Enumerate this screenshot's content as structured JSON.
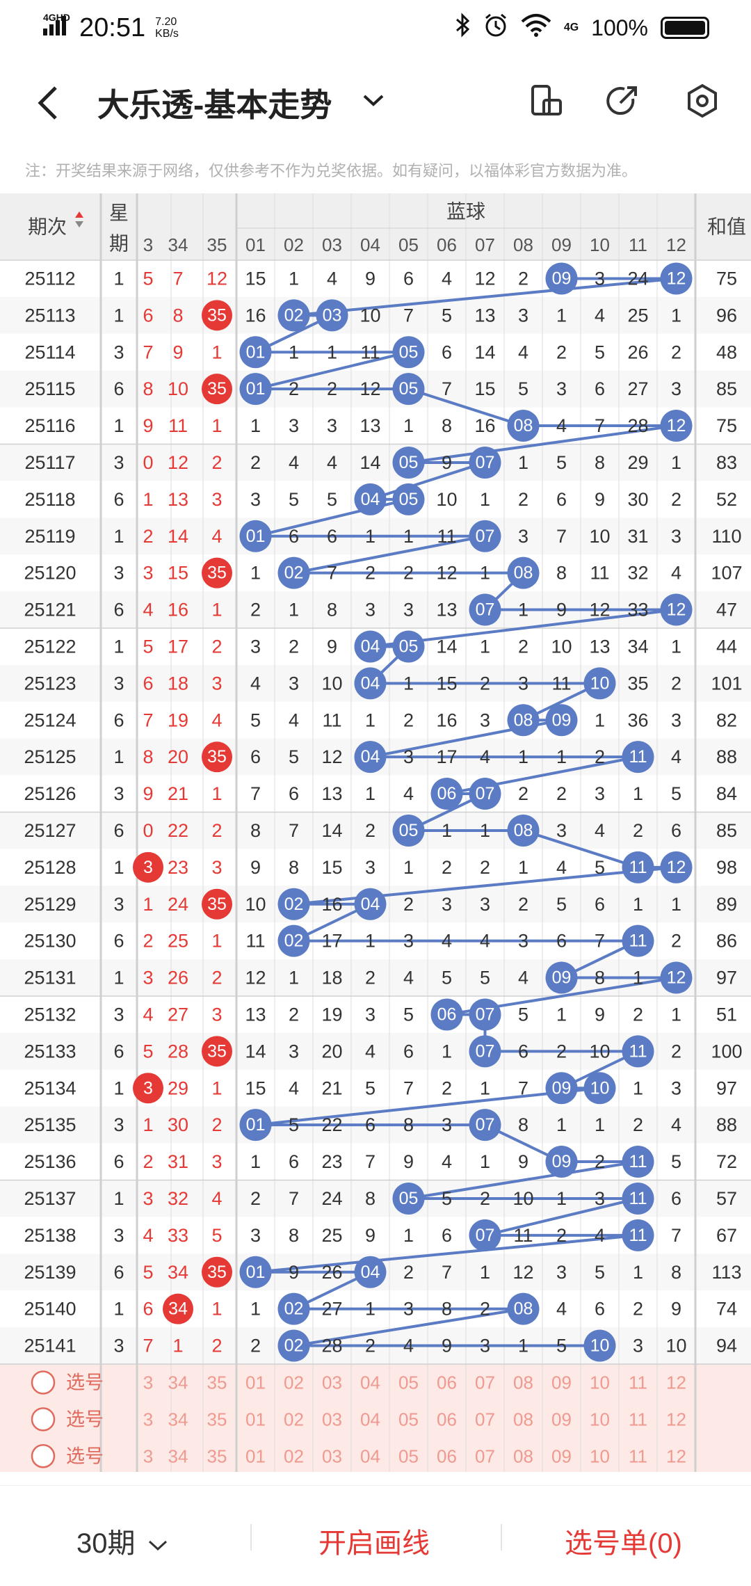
{
  "status_bar": {
    "network": "4GHD",
    "time": "20:51",
    "speed_value": "7.20",
    "speed_unit": "KB/s",
    "signal_4g": "4G",
    "battery": "100%"
  },
  "header": {
    "title": "大乐透-基本走势"
  },
  "disclaimer": "注：开奖结果来源于网络，仅供参考不作为兑奖依据。如有疑问，以福体彩官方数据为准。",
  "table": {
    "header_period": "期次",
    "header_weekday": "星期",
    "header_blue": "蓝球",
    "header_sum": "和值",
    "red_cols": [
      "3",
      "34",
      "35"
    ],
    "blue_cols": [
      "01",
      "02",
      "03",
      "04",
      "05",
      "06",
      "07",
      "08",
      "09",
      "10",
      "11",
      "12"
    ],
    "rows": [
      {
        "p": "25112",
        "w": "1",
        "r": [
          "5",
          "7",
          "12"
        ],
        "b": [
          15,
          1,
          4,
          9,
          6,
          4,
          12,
          2,
          "09",
          3,
          24,
          "12"
        ],
        "s": "75"
      },
      {
        "p": "25113",
        "w": "1",
        "r": [
          "6",
          "8",
          "35"
        ],
        "b": [
          16,
          "02",
          "03",
          10,
          7,
          5,
          13,
          3,
          1,
          4,
          25,
          1
        ],
        "s": "96"
      },
      {
        "p": "25114",
        "w": "3",
        "r": [
          "7",
          "9",
          "1"
        ],
        "b": [
          "01",
          1,
          1,
          11,
          "05",
          6,
          14,
          4,
          2,
          5,
          26,
          2
        ],
        "s": "48"
      },
      {
        "p": "25115",
        "w": "6",
        "r": [
          "8",
          "10",
          "35"
        ],
        "b": [
          "01",
          2,
          2,
          12,
          "05",
          7,
          15,
          5,
          3,
          6,
          27,
          3
        ],
        "s": "85"
      },
      {
        "p": "25116",
        "w": "1",
        "r": [
          "9",
          "11",
          "1"
        ],
        "b": [
          1,
          3,
          3,
          13,
          1,
          8,
          16,
          "08",
          4,
          7,
          28,
          "12"
        ],
        "s": "75"
      },
      {
        "p": "25117",
        "w": "3",
        "r": [
          "0",
          "12",
          "2"
        ],
        "b": [
          2,
          4,
          4,
          14,
          "05",
          9,
          "07",
          1,
          5,
          8,
          29,
          1
        ],
        "s": "83"
      },
      {
        "p": "25118",
        "w": "6",
        "r": [
          "1",
          "13",
          "3"
        ],
        "b": [
          3,
          5,
          5,
          "04",
          "05",
          10,
          1,
          2,
          6,
          9,
          30,
          2
        ],
        "s": "52"
      },
      {
        "p": "25119",
        "w": "1",
        "r": [
          "2",
          "14",
          "4"
        ],
        "b": [
          "01",
          6,
          6,
          1,
          1,
          11,
          "07",
          3,
          7,
          10,
          31,
          3
        ],
        "s": "110"
      },
      {
        "p": "25120",
        "w": "3",
        "r": [
          "3",
          "15",
          "35"
        ],
        "b": [
          1,
          "02",
          7,
          2,
          2,
          12,
          1,
          "08",
          8,
          11,
          32,
          4
        ],
        "s": "107"
      },
      {
        "p": "25121",
        "w": "6",
        "r": [
          "4",
          "16",
          "1"
        ],
        "b": [
          2,
          1,
          8,
          3,
          3,
          13,
          "07",
          1,
          9,
          12,
          33,
          "12"
        ],
        "s": "47"
      },
      {
        "p": "25122",
        "w": "1",
        "r": [
          "5",
          "17",
          "2"
        ],
        "b": [
          3,
          2,
          9,
          "04",
          "05",
          14,
          1,
          2,
          10,
          13,
          34,
          1
        ],
        "s": "44"
      },
      {
        "p": "25123",
        "w": "3",
        "r": [
          "6",
          "18",
          "3"
        ],
        "b": [
          4,
          3,
          10,
          "04",
          1,
          15,
          2,
          3,
          11,
          "10",
          35,
          2
        ],
        "s": "101"
      },
      {
        "p": "25124",
        "w": "6",
        "r": [
          "7",
          "19",
          "4"
        ],
        "b": [
          5,
          4,
          11,
          1,
          2,
          16,
          3,
          "08",
          "09",
          1,
          36,
          3
        ],
        "s": "82"
      },
      {
        "p": "25125",
        "w": "1",
        "r": [
          "8",
          "20",
          "35"
        ],
        "b": [
          6,
          5,
          12,
          "04",
          3,
          17,
          4,
          1,
          1,
          2,
          "11",
          4
        ],
        "s": "88"
      },
      {
        "p": "25126",
        "w": "3",
        "r": [
          "9",
          "21",
          "1"
        ],
        "b": [
          7,
          6,
          13,
          1,
          4,
          "06",
          "07",
          2,
          2,
          3,
          1,
          5
        ],
        "s": "84"
      },
      {
        "p": "25127",
        "w": "6",
        "r": [
          "0",
          "22",
          "2"
        ],
        "b": [
          8,
          7,
          14,
          2,
          "05",
          1,
          1,
          "08",
          3,
          4,
          2,
          6
        ],
        "s": "85"
      },
      {
        "p": "25128",
        "w": "1",
        "r": [
          "3",
          "23",
          "3"
        ],
        "b": [
          9,
          8,
          15,
          3,
          1,
          2,
          2,
          1,
          4,
          5,
          "11",
          "12"
        ],
        "s": "98"
      },
      {
        "p": "25129",
        "w": "3",
        "r": [
          "1",
          "24",
          "35"
        ],
        "b": [
          10,
          "02",
          16,
          "04",
          2,
          3,
          3,
          2,
          5,
          6,
          1,
          1
        ],
        "s": "89"
      },
      {
        "p": "25130",
        "w": "6",
        "r": [
          "2",
          "25",
          "1"
        ],
        "b": [
          11,
          "02",
          17,
          1,
          3,
          4,
          4,
          3,
          6,
          7,
          "11",
          2
        ],
        "s": "86"
      },
      {
        "p": "25131",
        "w": "1",
        "r": [
          "3",
          "26",
          "2"
        ],
        "b": [
          12,
          1,
          18,
          2,
          4,
          5,
          5,
          4,
          "09",
          8,
          1,
          "12"
        ],
        "s": "97"
      },
      {
        "p": "25132",
        "w": "3",
        "r": [
          "4",
          "27",
          "3"
        ],
        "b": [
          13,
          2,
          19,
          3,
          5,
          "06",
          "07",
          5,
          1,
          9,
          2,
          1
        ],
        "s": "51"
      },
      {
        "p": "25133",
        "w": "6",
        "r": [
          "5",
          "28",
          "35"
        ],
        "b": [
          14,
          3,
          20,
          4,
          6,
          1,
          "07",
          6,
          2,
          10,
          "11",
          2
        ],
        "s": "100"
      },
      {
        "p": "25134",
        "w": "1",
        "r": [
          "3",
          "29",
          "1"
        ],
        "b": [
          15,
          4,
          21,
          5,
          7,
          2,
          1,
          7,
          "09",
          "10",
          1,
          3
        ],
        "s": "97"
      },
      {
        "p": "25135",
        "w": "3",
        "r": [
          "1",
          "30",
          "2"
        ],
        "b": [
          "01",
          5,
          22,
          6,
          8,
          3,
          "07",
          8,
          1,
          1,
          2,
          4
        ],
        "s": "88"
      },
      {
        "p": "25136",
        "w": "6",
        "r": [
          "2",
          "31",
          "3"
        ],
        "b": [
          1,
          6,
          23,
          7,
          9,
          4,
          1,
          9,
          "09",
          2,
          "11",
          5
        ],
        "s": "72"
      },
      {
        "p": "25137",
        "w": "1",
        "r": [
          "3",
          "32",
          "4"
        ],
        "b": [
          2,
          7,
          24,
          8,
          "05",
          5,
          2,
          10,
          1,
          3,
          "11",
          6
        ],
        "s": "57"
      },
      {
        "p": "25138",
        "w": "3",
        "r": [
          "4",
          "33",
          "5"
        ],
        "b": [
          3,
          8,
          25,
          9,
          1,
          6,
          "07",
          11,
          2,
          4,
          "11",
          7
        ],
        "s": "67"
      },
      {
        "p": "25139",
        "w": "6",
        "r": [
          "5",
          "34",
          "35"
        ],
        "b": [
          "01",
          9,
          26,
          "04",
          2,
          7,
          1,
          12,
          3,
          5,
          1,
          8
        ],
        "s": "113"
      },
      {
        "p": "25140",
        "w": "1",
        "r": [
          "6",
          "34",
          "1"
        ],
        "b": [
          1,
          "02",
          27,
          1,
          3,
          8,
          2,
          "08",
          4,
          6,
          2,
          9
        ],
        "s": "74"
      },
      {
        "p": "25141",
        "w": "3",
        "r": [
          "7",
          "1",
          "2"
        ],
        "b": [
          2,
          "02",
          28,
          2,
          4,
          9,
          3,
          1,
          5,
          "10",
          3,
          10
        ],
        "s": "94"
      }
    ],
    "pick_label": "选号",
    "pick_rows": 3
  },
  "bottom_bar": {
    "periods": "30期",
    "draw_lines": "开启画线",
    "selection": "选号单(0)"
  },
  "colors": {
    "blue_ball": "#5b7cc4",
    "red_ball": "#e53935",
    "red_text": "#e53935",
    "line": "#5b7cc4",
    "pick_bg": "#fde9e6"
  }
}
